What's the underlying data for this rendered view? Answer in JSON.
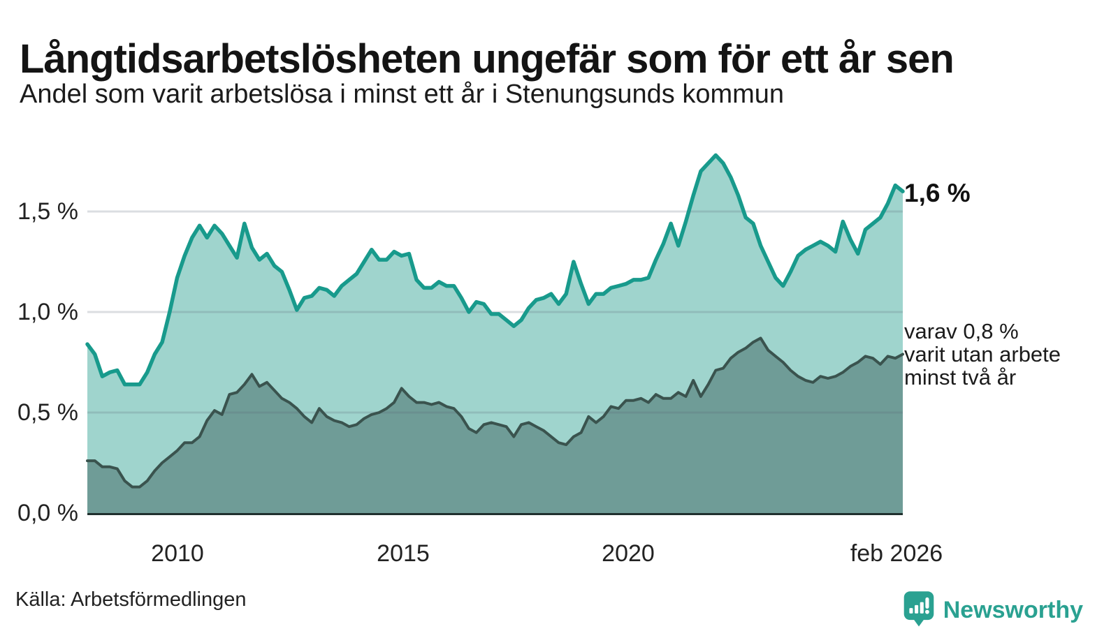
{
  "chart_data": {
    "type": "area",
    "title": "Långtidsarbetslösheten ungefär som för ett år sen",
    "subtitle": "Andel som varit arbetslösa i minst ett år i Stenungsunds kommun",
    "unit": "%",
    "x_range_years": [
      2008.0,
      2026.08
    ],
    "ylim": [
      0,
      1.85
    ],
    "grid": true,
    "legend_position": "none",
    "y_ticks": [
      {
        "value": 1.5,
        "label": "1,5 %"
      },
      {
        "value": 1.0,
        "label": "1,0 %"
      },
      {
        "value": 0.5,
        "label": "0,5 %"
      },
      {
        "value": 0.0,
        "label": "0,0 %"
      }
    ],
    "x_ticks": [
      {
        "value": 2010,
        "label": "2010"
      },
      {
        "value": 2015,
        "label": "2015"
      },
      {
        "value": 2020,
        "label": "2020"
      },
      {
        "value": 2026.08,
        "label": "feb 2026"
      }
    ],
    "series": [
      {
        "name": "Arbetslösa minst ett år",
        "line_color": "#189a8c",
        "fill_color": "#9fd4cd",
        "end_value_label": "1,6 %",
        "values": [
          0.84,
          0.79,
          0.68,
          0.7,
          0.71,
          0.64,
          0.64,
          0.64,
          0.7,
          0.79,
          0.85,
          1.0,
          1.17,
          1.28,
          1.37,
          1.43,
          1.37,
          1.43,
          1.39,
          1.33,
          1.27,
          1.44,
          1.32,
          1.26,
          1.29,
          1.23,
          1.2,
          1.11,
          1.01,
          1.07,
          1.08,
          1.12,
          1.11,
          1.08,
          1.13,
          1.16,
          1.19,
          1.25,
          1.31,
          1.26,
          1.26,
          1.3,
          1.28,
          1.29,
          1.16,
          1.12,
          1.12,
          1.15,
          1.13,
          1.13,
          1.07,
          1.0,
          1.05,
          1.04,
          0.99,
          0.99,
          0.96,
          0.93,
          0.96,
          1.02,
          1.06,
          1.07,
          1.09,
          1.04,
          1.09,
          1.25,
          1.14,
          1.04,
          1.09,
          1.09,
          1.12,
          1.13,
          1.14,
          1.16,
          1.16,
          1.17,
          1.26,
          1.34,
          1.44,
          1.33,
          1.45,
          1.58,
          1.7,
          1.74,
          1.78,
          1.74,
          1.67,
          1.58,
          1.47,
          1.44,
          1.33,
          1.25,
          1.17,
          1.13,
          1.2,
          1.28,
          1.31,
          1.33,
          1.35,
          1.33,
          1.3,
          1.45,
          1.36,
          1.29,
          1.41,
          1.44,
          1.47,
          1.54,
          1.63,
          1.6
        ]
      },
      {
        "name": "varav utan arbete minst två år",
        "line_color": "#3a534e",
        "fill_color": "#6f9c97",
        "end_value_label": "varav 0,8 %",
        "values": [
          0.26,
          0.26,
          0.23,
          0.23,
          0.22,
          0.16,
          0.13,
          0.13,
          0.16,
          0.21,
          0.25,
          0.28,
          0.31,
          0.35,
          0.35,
          0.38,
          0.46,
          0.51,
          0.49,
          0.59,
          0.6,
          0.64,
          0.69,
          0.63,
          0.65,
          0.61,
          0.57,
          0.55,
          0.52,
          0.48,
          0.45,
          0.52,
          0.48,
          0.46,
          0.45,
          0.43,
          0.44,
          0.47,
          0.49,
          0.5,
          0.52,
          0.55,
          0.62,
          0.58,
          0.55,
          0.55,
          0.54,
          0.55,
          0.53,
          0.52,
          0.48,
          0.42,
          0.4,
          0.44,
          0.45,
          0.44,
          0.43,
          0.38,
          0.44,
          0.45,
          0.43,
          0.41,
          0.38,
          0.35,
          0.34,
          0.38,
          0.4,
          0.48,
          0.45,
          0.48,
          0.53,
          0.52,
          0.56,
          0.56,
          0.57,
          0.55,
          0.59,
          0.57,
          0.57,
          0.6,
          0.58,
          0.66,
          0.58,
          0.64,
          0.71,
          0.72,
          0.77,
          0.8,
          0.82,
          0.85,
          0.87,
          0.81,
          0.78,
          0.75,
          0.71,
          0.68,
          0.66,
          0.65,
          0.68,
          0.67,
          0.68,
          0.7,
          0.73,
          0.75,
          0.78,
          0.77,
          0.74,
          0.78,
          0.77,
          0.79
        ]
      }
    ],
    "annotations": {
      "primary_end_label": "1,6 %",
      "secondary_lines": [
        "varav 0,8 %",
        "varit utan arbete",
        "minst två år"
      ]
    }
  },
  "footer": {
    "source": "Källa: Arbetsförmedlingen",
    "brand_name": "Newsworthy",
    "brand_color": "#2aa191"
  }
}
